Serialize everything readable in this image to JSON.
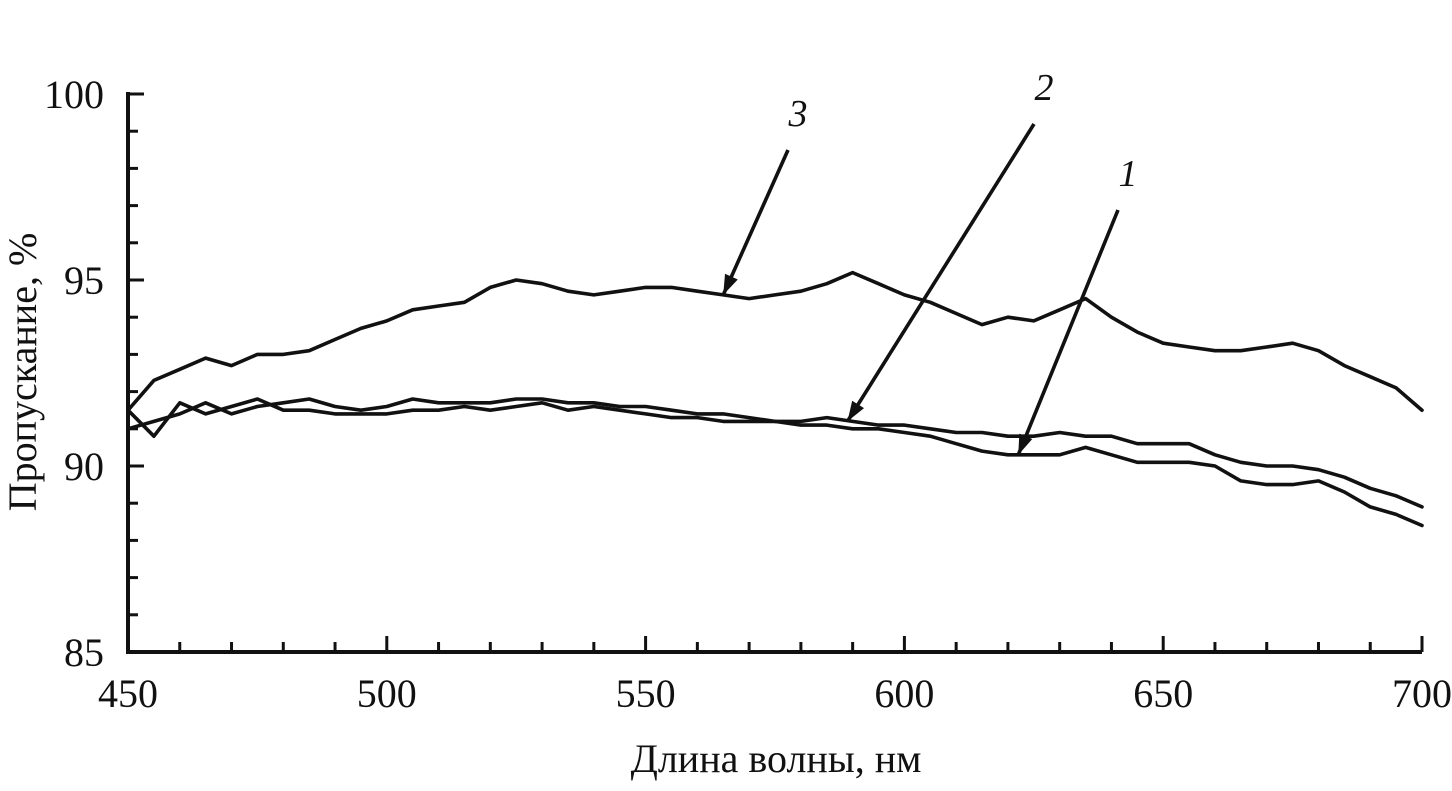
{
  "chart_data": {
    "type": "line",
    "xlabel": "Длина волны, нм",
    "ylabel": "Пропускание, %",
    "xlim": [
      450,
      700
    ],
    "ylim": [
      85,
      100
    ],
    "x_ticks": [
      450,
      500,
      550,
      600,
      650,
      700
    ],
    "x_tick_labels": [
      "450",
      "500",
      "550",
      "600",
      "650",
      "700"
    ],
    "y_ticks": [
      85,
      90,
      95,
      100
    ],
    "y_tick_labels": [
      "85",
      "90",
      "95",
      "100"
    ],
    "grid": false,
    "series": [
      {
        "name": "1",
        "x": [
          450,
          455,
          460,
          465,
          470,
          475,
          480,
          485,
          490,
          495,
          500,
          505,
          510,
          515,
          520,
          525,
          530,
          535,
          540,
          545,
          550,
          555,
          560,
          565,
          570,
          575,
          580,
          585,
          590,
          595,
          600,
          605,
          610,
          615,
          620,
          625,
          630,
          635,
          640,
          645,
          650,
          655,
          660,
          665,
          670,
          675,
          680,
          685,
          690,
          695,
          700
        ],
        "y": [
          91.5,
          90.8,
          91.7,
          91.4,
          91.6,
          91.8,
          91.5,
          91.5,
          91.4,
          91.4,
          91.4,
          91.5,
          91.5,
          91.6,
          91.5,
          91.6,
          91.7,
          91.5,
          91.6,
          91.5,
          91.4,
          91.3,
          91.3,
          91.2,
          91.2,
          91.2,
          91.1,
          91.1,
          91.0,
          91.0,
          90.9,
          90.8,
          90.6,
          90.4,
          90.3,
          90.3,
          90.3,
          90.5,
          90.3,
          90.1,
          90.1,
          90.1,
          90.0,
          89.6,
          89.5,
          89.5,
          89.6,
          89.3,
          88.9,
          88.7,
          88.4
        ]
      },
      {
        "name": "2",
        "x": [
          450,
          455,
          460,
          465,
          470,
          475,
          480,
          485,
          490,
          495,
          500,
          505,
          510,
          515,
          520,
          525,
          530,
          535,
          540,
          545,
          550,
          555,
          560,
          565,
          570,
          575,
          580,
          585,
          590,
          595,
          600,
          605,
          610,
          615,
          620,
          625,
          630,
          635,
          640,
          645,
          650,
          655,
          660,
          665,
          670,
          675,
          680,
          685,
          690,
          695,
          700
        ],
        "y": [
          91.0,
          91.2,
          91.4,
          91.7,
          91.4,
          91.6,
          91.7,
          91.8,
          91.6,
          91.5,
          91.6,
          91.8,
          91.7,
          91.7,
          91.7,
          91.8,
          91.8,
          91.7,
          91.7,
          91.6,
          91.6,
          91.5,
          91.4,
          91.4,
          91.3,
          91.2,
          91.2,
          91.3,
          91.2,
          91.1,
          91.1,
          91.0,
          90.9,
          90.9,
          90.8,
          90.8,
          90.9,
          90.8,
          90.8,
          90.6,
          90.6,
          90.6,
          90.3,
          90.1,
          90.0,
          90.0,
          89.9,
          89.7,
          89.4,
          89.2,
          88.9
        ]
      },
      {
        "name": "3",
        "x": [
          450,
          455,
          460,
          465,
          470,
          475,
          480,
          485,
          490,
          495,
          500,
          505,
          510,
          515,
          520,
          525,
          530,
          535,
          540,
          545,
          550,
          555,
          560,
          565,
          570,
          575,
          580,
          585,
          590,
          595,
          600,
          605,
          610,
          615,
          620,
          625,
          630,
          635,
          640,
          645,
          650,
          655,
          660,
          665,
          670,
          675,
          680,
          685,
          690,
          695,
          700
        ],
        "y": [
          91.5,
          92.3,
          92.6,
          92.9,
          92.7,
          93.0,
          93.0,
          93.1,
          93.4,
          93.7,
          93.9,
          94.2,
          94.3,
          94.4,
          94.8,
          95.0,
          94.9,
          94.7,
          94.6,
          94.7,
          94.8,
          94.8,
          94.7,
          94.6,
          94.5,
          94.6,
          94.7,
          94.9,
          95.2,
          94.9,
          94.6,
          94.4,
          94.1,
          93.8,
          94.0,
          93.9,
          94.2,
          94.5,
          94.0,
          93.6,
          93.3,
          93.2,
          93.1,
          93.1,
          93.2,
          93.3,
          93.1,
          92.7,
          92.4,
          92.1,
          91.5
        ]
      }
    ],
    "annotations": [
      {
        "text": "1",
        "arrow_to": [
          622,
          90.3
        ]
      },
      {
        "text": "2",
        "arrow_to": [
          589,
          91.2
        ]
      },
      {
        "text": "3",
        "arrow_to": [
          565,
          94.6
        ]
      }
    ]
  }
}
